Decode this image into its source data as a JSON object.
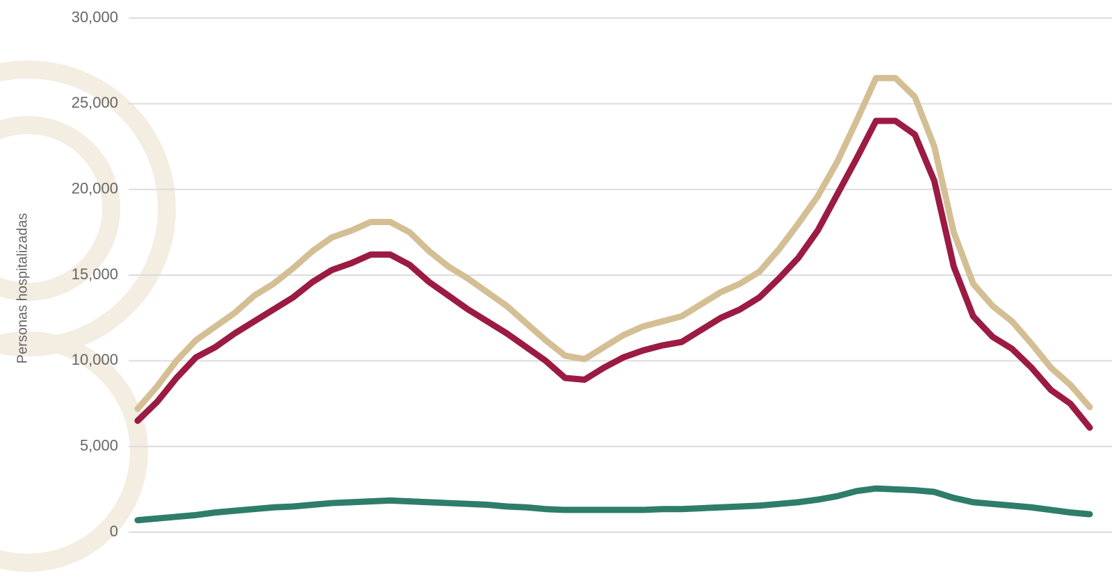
{
  "chart_data": {
    "type": "line",
    "y_label": "Personas hospitalizadas",
    "ylim": [
      0,
      30000
    ],
    "yticks": [
      0,
      {
        "value": 5000,
        "label": "5,000"
      },
      {
        "value": 10000,
        "label": "10,000"
      },
      {
        "value": 15000,
        "label": "15,000"
      },
      {
        "value": 20000,
        "label": "20,000"
      },
      {
        "value": 25000,
        "label": "25,000"
      },
      {
        "value": 30000,
        "label": "30,000"
      }
    ],
    "grid": true,
    "series": [
      {
        "color": "#d4bf95",
        "values": [
          7200,
          8500,
          10000,
          11200,
          12000,
          12800,
          13800,
          14500,
          15400,
          16400,
          17200,
          17600,
          18100,
          18100,
          17500,
          16400,
          15500,
          14800,
          14000,
          13200,
          12200,
          11200,
          10300,
          10100,
          10800,
          11500,
          12000,
          12300,
          12600,
          13300,
          14000,
          14500,
          15200,
          16500,
          18000,
          19600,
          21600,
          24000,
          26500,
          26500,
          25400,
          22500,
          17500,
          14500,
          13200,
          12300,
          11000,
          9600,
          8600,
          7300
        ]
      },
      {
        "color": "#9b1b42",
        "values": [
          6500,
          7600,
          9000,
          10200,
          10800,
          11600,
          12300,
          13000,
          13700,
          14600,
          15300,
          15700,
          16200,
          16200,
          15600,
          14600,
          13800,
          13000,
          12300,
          11600,
          10800,
          10000,
          9000,
          8900,
          9600,
          10200,
          10600,
          10900,
          11100,
          11800,
          12500,
          13000,
          13700,
          14800,
          16000,
          17600,
          19700,
          21800,
          24000,
          24000,
          23200,
          20500,
          15500,
          12600,
          11400,
          10700,
          9600,
          8300,
          7500,
          6100
        ]
      },
      {
        "color": "#2e7d6a",
        "values": [
          700,
          800,
          900,
          1000,
          1150,
          1250,
          1350,
          1450,
          1500,
          1600,
          1700,
          1750,
          1800,
          1850,
          1800,
          1750,
          1700,
          1650,
          1600,
          1500,
          1450,
          1350,
          1300,
          1300,
          1300,
          1300,
          1300,
          1350,
          1350,
          1400,
          1450,
          1500,
          1550,
          1650,
          1750,
          1900,
          2100,
          2400,
          2550,
          2500,
          2450,
          2350,
          2000,
          1750,
          1650,
          1550,
          1450,
          1300,
          1150,
          1050
        ]
      }
    ]
  }
}
